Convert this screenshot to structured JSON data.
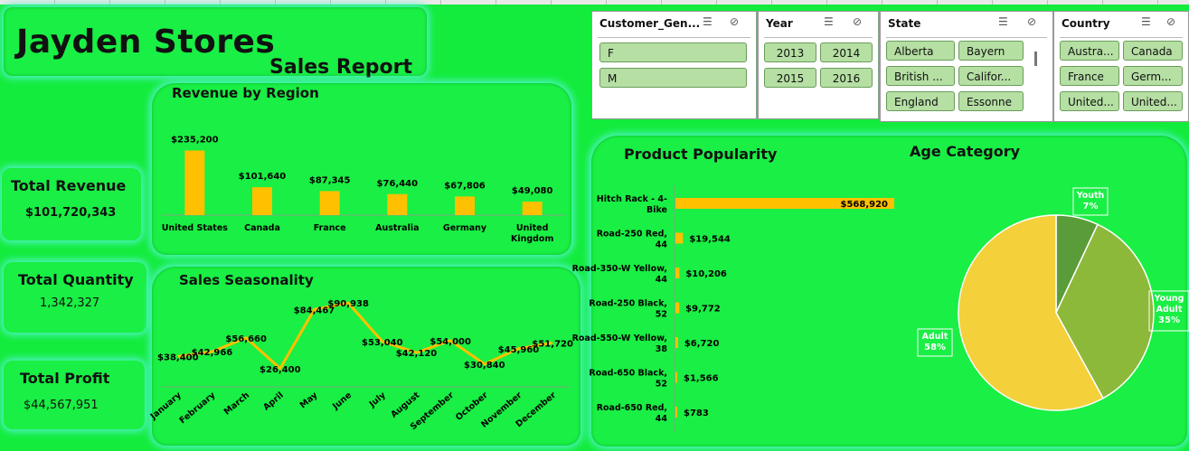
{
  "header": {
    "title": "Jayden Stores",
    "subtitle": "Sales Report"
  },
  "kpis": {
    "revenue": {
      "label": "Total Revenue",
      "value": "$101,720,343"
    },
    "quantity": {
      "label": "Total Quantity",
      "value": "1,342,327"
    },
    "profit": {
      "label": "Total Profit",
      "value": "$44,567,951"
    }
  },
  "slicers": {
    "gender": {
      "title": "Customer_Gen...",
      "items": [
        "F",
        "M"
      ]
    },
    "year": {
      "title": "Year",
      "items": [
        "2013",
        "2014",
        "2015",
        "2016"
      ]
    },
    "state": {
      "title": "State",
      "items": [
        "Alberta",
        "Bayern",
        "British ...",
        "Califor...",
        "England",
        "Essonne"
      ]
    },
    "country": {
      "title": "Country",
      "items": [
        "Austra...",
        "Canada",
        "France",
        "Germ...",
        "United...",
        "United..."
      ]
    }
  },
  "colors": {
    "background": "#13ec3c",
    "bar": "#ffc000",
    "pie_adult": "#f4d03a",
    "pie_young": "#8db93a",
    "pie_youth": "#5b9c3a"
  },
  "chart_data": [
    {
      "type": "bar",
      "title": "Revenue by Region",
      "categories": [
        "United States",
        "Canada",
        "France",
        "Australia",
        "Germany",
        "United Kingdom"
      ],
      "values": [
        235200,
        101640,
        87345,
        76440,
        67806,
        49080
      ],
      "data_labels": [
        "$235,200",
        "$101,640",
        "$87,345",
        "$76,440",
        "$67,806",
        "$49,080"
      ]
    },
    {
      "type": "line",
      "title": "Sales Seasonality",
      "categories": [
        "January",
        "February",
        "March",
        "April",
        "May",
        "June",
        "July",
        "August",
        "September",
        "October",
        "November",
        "December"
      ],
      "values": [
        38400,
        42966,
        56660,
        26400,
        84467,
        90938,
        53040,
        42120,
        54000,
        30840,
        45960,
        51720
      ],
      "data_labels": [
        "$38,400",
        "$42,966",
        "$56,660",
        "$26,400",
        "$84,467",
        "$90,938",
        "$53,040",
        "$42,120",
        "$54,000",
        "$30,840",
        "$45,960",
        "$51,720"
      ]
    },
    {
      "type": "bar",
      "orientation": "horizontal",
      "title": "Product Popularity",
      "categories": [
        "Hitch Rack - 4-Bike",
        "Road-250 Red, 44",
        "Road-350-W Yellow, 44",
        "Road-250 Black, 52",
        "Road-550-W Yellow, 38",
        "Road-650 Black, 52",
        "Road-650 Red, 44"
      ],
      "values": [
        568920,
        19544,
        10206,
        9772,
        6720,
        1566,
        783
      ],
      "data_labels": [
        "$568,920",
        "$19,544",
        "$10,206",
        "$9,772",
        "$6,720",
        "$1,566",
        "$783"
      ]
    },
    {
      "type": "pie",
      "title": "Age Category",
      "slices": [
        {
          "name": "Youth",
          "value": 7,
          "label": "7%"
        },
        {
          "name": "Young Adult",
          "value": 35,
          "label": "35%"
        },
        {
          "name": "Adult",
          "value": 58,
          "label": "58%"
        }
      ]
    }
  ]
}
